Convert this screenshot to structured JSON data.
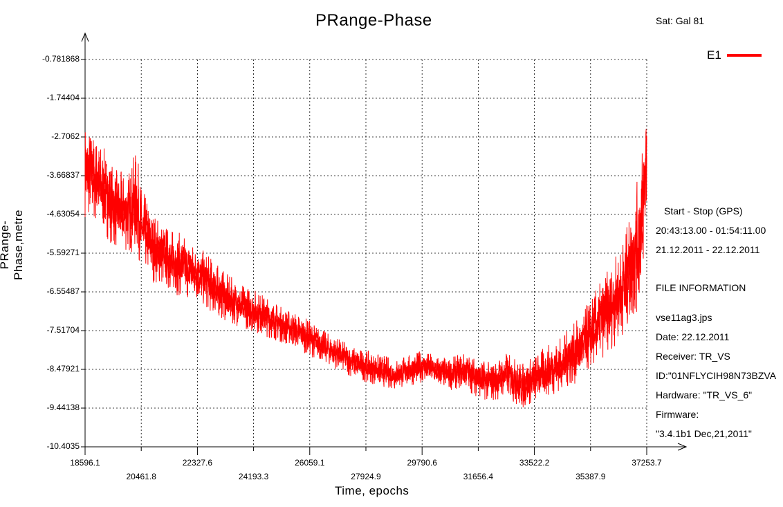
{
  "chart_data": {
    "type": "line",
    "title": "PRange-Phase",
    "xlabel": "Time, epochs",
    "ylabel": "PRange-Phase,metre",
    "xlim": [
      18596.1,
      37253.7
    ],
    "ylim": [
      -10.4035,
      -0.781868
    ],
    "x_ticks": [
      "18596.1",
      "20461.8",
      "22327.6",
      "24193.3",
      "26059.1",
      "27924.9",
      "29790.6",
      "31656.4",
      "33522.2",
      "35387.9",
      "37253.7"
    ],
    "y_ticks": [
      "-0.781868",
      "-1.74404",
      "-2.7062",
      "-3.66837",
      "-4.63054",
      "-5.59271",
      "-6.55487",
      "-7.51704",
      "-8.47921",
      "-9.44138",
      "-10.4035"
    ],
    "grid": true,
    "legend": "top-right",
    "series": [
      {
        "name": "E1",
        "color": "#ff0000",
        "x": [
          18596.1,
          19100,
          19600,
          20000,
          20300,
          20461.8,
          20800,
          21300,
          21800,
          22327.6,
          22800,
          23300,
          23800,
          24193.3,
          24700,
          25200,
          25600,
          26059.1,
          26500,
          27000,
          27500,
          27924.9,
          28400,
          28900,
          29400,
          29790.6,
          30200,
          30700,
          31200,
          31656.4,
          32100,
          32600,
          33100,
          33522.2,
          34000,
          34500,
          35000,
          35387.9,
          35800,
          36200,
          36600,
          36900,
          37100,
          37253.7
        ],
        "y": [
          -3.5,
          -3.9,
          -4.5,
          -4.6,
          -4.3,
          -4.9,
          -5.4,
          -5.7,
          -5.9,
          -6.1,
          -6.4,
          -6.7,
          -6.9,
          -7.0,
          -7.2,
          -7.4,
          -7.5,
          -7.7,
          -7.9,
          -8.1,
          -8.3,
          -8.4,
          -8.5,
          -8.6,
          -8.5,
          -8.4,
          -8.5,
          -8.6,
          -8.5,
          -8.7,
          -8.8,
          -8.6,
          -8.9,
          -8.7,
          -8.5,
          -8.3,
          -8.0,
          -7.6,
          -7.2,
          -6.8,
          -6.2,
          -5.6,
          -4.6,
          -3.2
        ],
        "noise_amplitude": [
          1.2,
          1.1,
          1.0,
          1.0,
          1.3,
          1.0,
          0.9,
          0.8,
          0.8,
          0.7,
          0.7,
          0.6,
          0.55,
          0.55,
          0.5,
          0.45,
          0.45,
          0.45,
          0.4,
          0.4,
          0.4,
          0.4,
          0.4,
          0.4,
          0.4,
          0.4,
          0.4,
          0.4,
          0.45,
          0.5,
          0.5,
          0.55,
          0.6,
          0.6,
          0.65,
          0.7,
          0.8,
          0.9,
          1.0,
          1.1,
          1.3,
          1.6,
          1.8,
          1.9
        ]
      }
    ]
  },
  "header": {
    "sat": "Sat: Gal  81"
  },
  "info": {
    "start_stop_label": "Start  -  Stop  (GPS)",
    "time_range": "20:43:13.00 - 01:54:11.00",
    "date_range": "21.12.2011 - 22.12.2011",
    "file_info_label": "FILE INFORMATION",
    "filename": "vse11ag3.jps",
    "date": "Date: 22.12.2011",
    "receiver": "Receiver: TR_VS",
    "id": "ID:\"01NFLYCIH98N73BZVA",
    "hardware": "Hardware: \"TR_VS_6\"",
    "firmware_label": "Firmware:",
    "firmware": "\"3.4.1b1 Dec,21,2011\""
  }
}
